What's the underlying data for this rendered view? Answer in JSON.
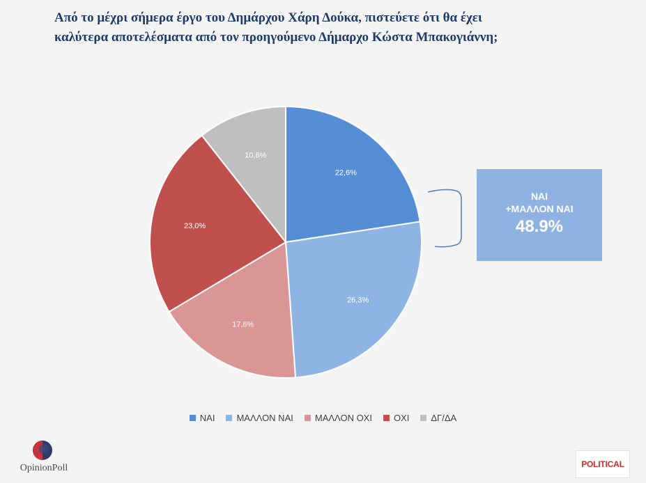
{
  "title": {
    "line1": "Από το μέχρι σήμερα έργο του Δημάρχου Χάρη Δούκα, πιστεύετε ότι θα έχει",
    "line2": "καλύτερα αποτελέσματα από τον προηγούμενο Δήμαρχο Κώστα Μπακογιάννη;"
  },
  "chart_data": {
    "type": "pie",
    "title": "Από το μέχρι σήμερα έργο του Δημάρχου Χάρη Δούκα, πιστεύετε ότι θα έχει καλύτερα αποτελέσματα από τον προηγούμενο Δήμαρχο Κώστα Μπακογιάννη;",
    "slices": [
      {
        "label": "ΝΑΙ",
        "value": 22.6,
        "value_label": "22,6%",
        "color": "#558ed5"
      },
      {
        "label": "ΜΑΛΛΟΝ ΝΑΙ",
        "value": 26.3,
        "value_label": "26,3%",
        "color": "#8eb4e3"
      },
      {
        "label": "ΜΑΛΛΟΝ ΟΧΙ",
        "value": 17.6,
        "value_label": "17,6%",
        "color": "#d99694"
      },
      {
        "label": "ΟΧΙ",
        "value": 23.0,
        "value_label": "23,0%",
        "color": "#c0504d"
      },
      {
        "label": "ΔΓ/ΔΑ",
        "value": 10.6,
        "value_label": "10,6%",
        "color": "#bfbfbf"
      }
    ],
    "legend_position": "bottom"
  },
  "callout": {
    "line1": "ΝΑΙ",
    "line2": "+ΜΑΛΛΟΝ ΝΑΙ",
    "value": "48.9%",
    "color": "#8eb3e3"
  },
  "logos": {
    "left_text": "OpinionPoll",
    "right_text": "POLITICAL"
  }
}
